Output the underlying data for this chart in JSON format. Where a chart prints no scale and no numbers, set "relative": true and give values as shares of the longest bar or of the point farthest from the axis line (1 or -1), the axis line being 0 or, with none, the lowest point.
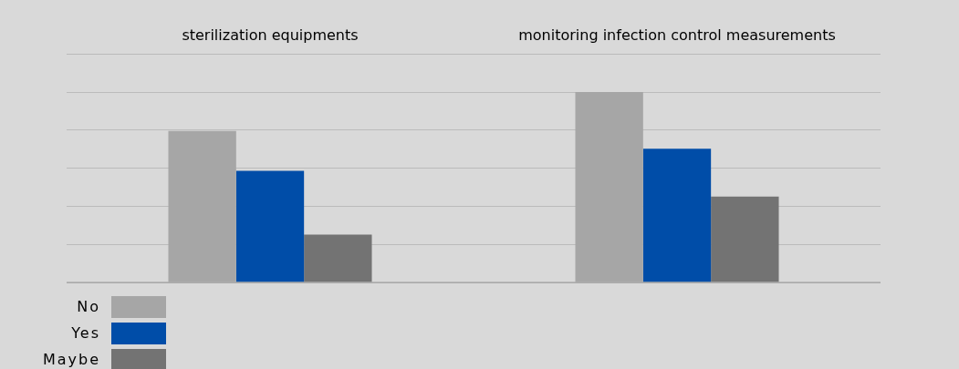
{
  "chart_data": {
    "type": "bar",
    "relative": true,
    "categories": [
      "sterilization equipments",
      "monitoring infection control measurements"
    ],
    "series": [
      {
        "name": "No",
        "color": "#a6a6a6",
        "values": [
          0.795,
          1
        ]
      },
      {
        "name": "Yes",
        "color": "#004da8",
        "values": [
          0.586,
          0.702
        ]
      },
      {
        "name": "Maybe",
        "color": "#737373",
        "values": [
          0.251,
          0.451
        ]
      }
    ],
    "grid": "y",
    "legend": "bottom left"
  }
}
